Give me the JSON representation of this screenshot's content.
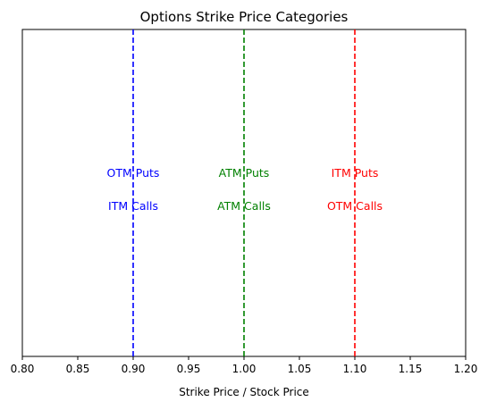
{
  "chart_data": {
    "type": "line",
    "title": "Options Strike Price Categories",
    "xlabel": "Strike Price / Stock Price",
    "ylabel": "",
    "xlim": [
      0.8,
      1.2
    ],
    "x_ticks": [
      "0.80",
      "0.85",
      "0.90",
      "0.95",
      "1.00",
      "1.05",
      "1.10",
      "1.15",
      "1.20"
    ],
    "y_ticks_visible": false,
    "grid": false,
    "legend": "none",
    "vertical_lines": [
      {
        "x": 0.9,
        "color": "#0000ff",
        "style": "dashed"
      },
      {
        "x": 1.0,
        "color": "#008000",
        "style": "dashed"
      },
      {
        "x": 1.1,
        "color": "#ff0000",
        "style": "dashed"
      }
    ],
    "annotations": [
      {
        "x": 0.9,
        "row": "upper",
        "text": "OTM Puts",
        "color": "#0000ff"
      },
      {
        "x": 0.9,
        "row": "lower",
        "text": "ITM Calls",
        "color": "#0000ff"
      },
      {
        "x": 1.0,
        "row": "upper",
        "text": "ATM Puts",
        "color": "#008000"
      },
      {
        "x": 1.0,
        "row": "lower",
        "text": "ATM Calls",
        "color": "#008000"
      },
      {
        "x": 1.1,
        "row": "upper",
        "text": "ITM Puts",
        "color": "#ff0000"
      },
      {
        "x": 1.1,
        "row": "lower",
        "text": "OTM Calls",
        "color": "#ff0000"
      }
    ]
  }
}
